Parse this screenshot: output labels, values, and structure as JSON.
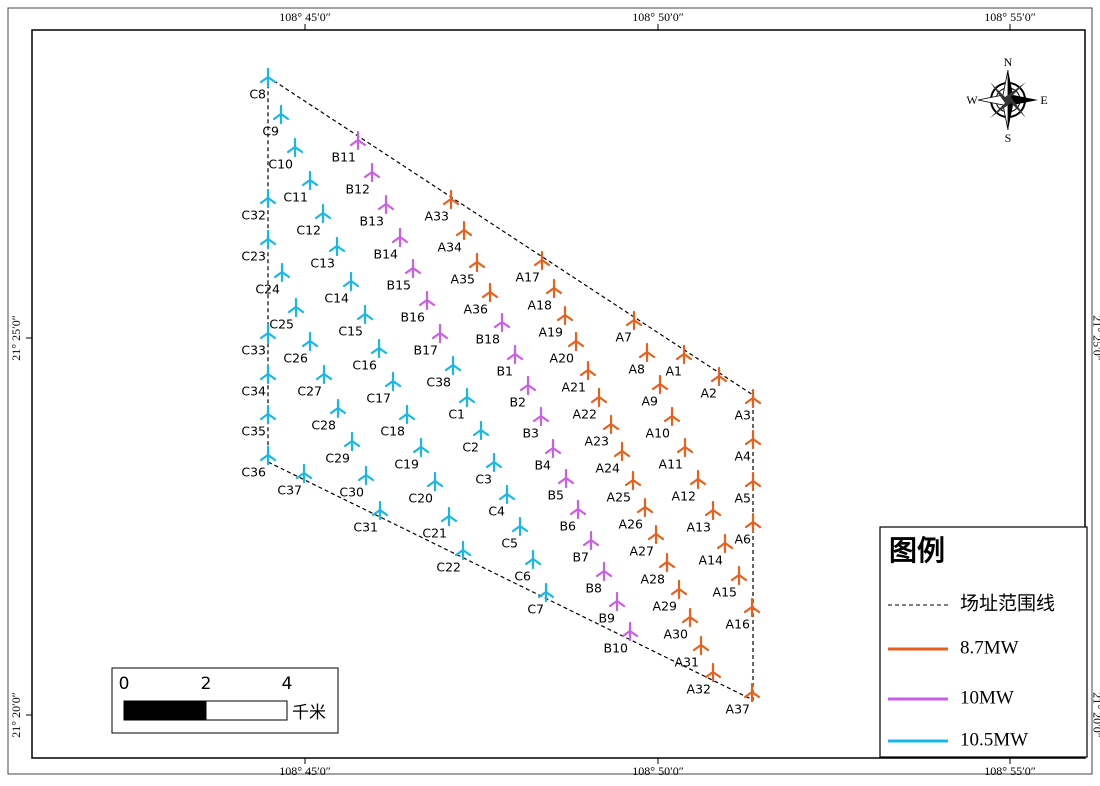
{
  "map": {
    "top_ticks": [
      "108° 45′0″",
      "108° 50′0″",
      "108° 55′0″"
    ],
    "bottom_ticks": [
      "108° 45′0″",
      "108° 50′0″",
      "108° 55′0″"
    ],
    "left_ticks": [
      "21° 25′0″",
      "21° 20′0″"
    ],
    "right_ticks": [
      "21° 25′0″",
      "21° 20′0″"
    ]
  },
  "compass": {
    "n": "N",
    "s": "S",
    "e": "E",
    "w": "W"
  },
  "legend": {
    "title": "图例",
    "items": [
      {
        "label": "场址范围线"
      },
      {
        "label": "8.7MW",
        "color": "#e8601c",
        "turbines": [
          "A1",
          "A2",
          "A3",
          "A4",
          "A5",
          "A6",
          "A7",
          "A8",
          "A9",
          "A10",
          "A11",
          "A12",
          "A13",
          "A14",
          "A15",
          "A16",
          "A17",
          "A18",
          "A19",
          "A20",
          "A21",
          "A22",
          "A23",
          "A24",
          "A25",
          "A26",
          "A27",
          "A28",
          "A29",
          "A30",
          "A31",
          "A32",
          "A33",
          "A34",
          "A35",
          "A36",
          "A37"
        ]
      },
      {
        "label": "10MW",
        "color": "#cc5ee6",
        "turbines": [
          "B1",
          "B2",
          "B3",
          "B4",
          "B5",
          "B6",
          "B7",
          "B8",
          "B9",
          "B10",
          "B11",
          "B12",
          "B13",
          "B14",
          "B15",
          "B16",
          "B17",
          "B18"
        ]
      },
      {
        "label": "10.5MW",
        "color": "#17b8e8",
        "turbines": [
          "C1",
          "C2",
          "C3",
          "C4",
          "C5",
          "C6",
          "C7",
          "C8",
          "C9",
          "C10",
          "C11",
          "C12",
          "C13",
          "C14",
          "C15",
          "C16",
          "C17",
          "C18",
          "C19",
          "C20",
          "C21",
          "C22",
          "C23",
          "C24",
          "C25",
          "C26",
          "C27",
          "C28",
          "C29",
          "C30",
          "C31",
          "C32",
          "C33",
          "C34",
          "C35",
          "C36",
          "C37",
          "C38"
        ]
      }
    ]
  },
  "scale_bar": {
    "ticks": [
      "0",
      "2",
      "4"
    ],
    "unit": "千米"
  }
}
